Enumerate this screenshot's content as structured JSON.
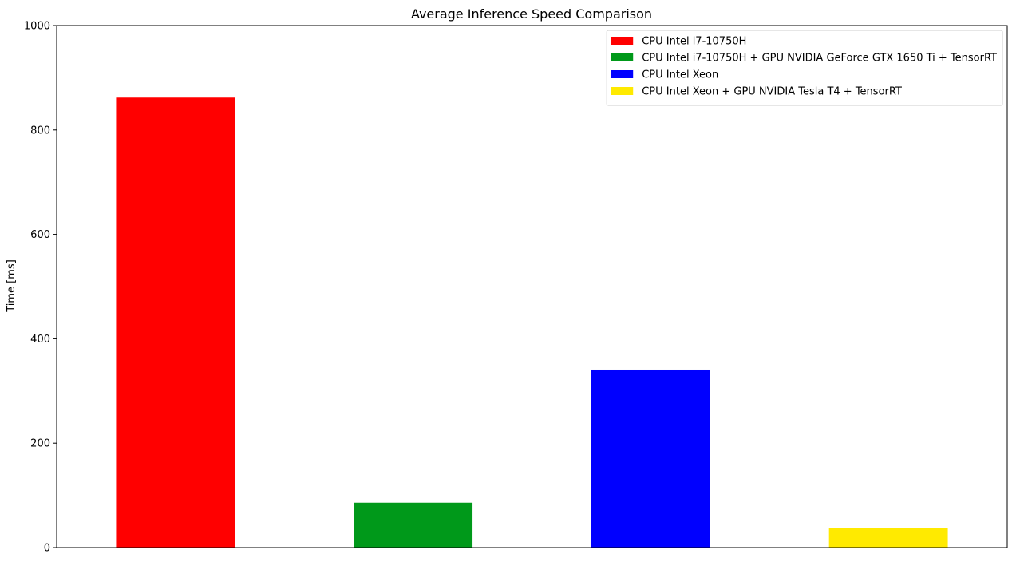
{
  "chart_data": {
    "type": "bar",
    "title": "Average Inference Speed Comparison",
    "xlabel": "",
    "ylabel": "Time [ms]",
    "ylim": [
      0,
      1000
    ],
    "yticks": [
      "0",
      "200",
      "400",
      "600",
      "800",
      "1000"
    ],
    "grid": false,
    "legend_position": "top-right",
    "series": [
      {
        "name": "CPU Intel i7-10750H",
        "value": 862,
        "color": "#ff0000"
      },
      {
        "name": "CPU Intel i7-10750H + GPU NVIDIA GeForce GTX 1650 Ti + TensorRT",
        "value": 86,
        "color": "#00991a"
      },
      {
        "name": "CPU Intel Xeon",
        "value": 341,
        "color": "#0000ff"
      },
      {
        "name": "CPU Intel Xeon + GPU NVIDIA Tesla T4 + TensorRT",
        "value": 37,
        "color": "#ffea00"
      }
    ]
  }
}
